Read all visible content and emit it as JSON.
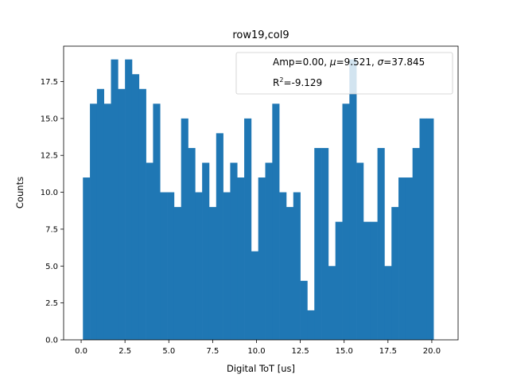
{
  "chart_data": {
    "type": "bar",
    "title": "row19,col9",
    "xlabel": "Digital ToT [us]",
    "ylabel": "Counts",
    "xlim": [
      -1.0,
      21.5
    ],
    "ylim": [
      0.0,
      19.9
    ],
    "bin_start": 0.1,
    "bin_width": 0.4,
    "values": [
      11,
      16,
      17,
      16,
      19,
      17,
      19,
      18,
      17,
      12,
      16,
      10,
      10,
      9,
      15,
      13,
      10,
      12,
      9,
      14,
      10,
      12,
      11,
      15,
      6,
      11,
      12,
      16,
      10,
      9,
      10,
      4,
      2,
      13,
      13,
      5,
      8,
      16,
      19,
      12,
      8,
      8,
      13,
      5,
      9,
      11,
      11,
      13,
      15,
      15
    ],
    "xticks": [
      "0.0",
      "2.5",
      "5.0",
      "7.5",
      "10.0",
      "12.5",
      "15.0",
      "17.5",
      "20.0"
    ],
    "xtick_values": [
      0,
      2.5,
      5,
      7.5,
      10,
      12.5,
      15,
      17.5,
      20
    ],
    "yticks": [
      "0.0",
      "2.5",
      "5.0",
      "7.5",
      "10.0",
      "12.5",
      "15.0",
      "17.5"
    ],
    "ytick_values": [
      0,
      2.5,
      5,
      7.5,
      10,
      12.5,
      15,
      17.5
    ],
    "bar_color": "#1f77b4",
    "grid": false,
    "legend_position": "top-right",
    "legend": {
      "line1": {
        "amp": "Amp=0.00, ",
        "mu_symbol": "μ",
        "mu_value": "=9.521, ",
        "sigma_symbol": "σ",
        "sigma_value": "=37.845"
      },
      "line2": {
        "r_label": "R",
        "r_exp": "2",
        "r_value": "=-9.129"
      }
    }
  }
}
